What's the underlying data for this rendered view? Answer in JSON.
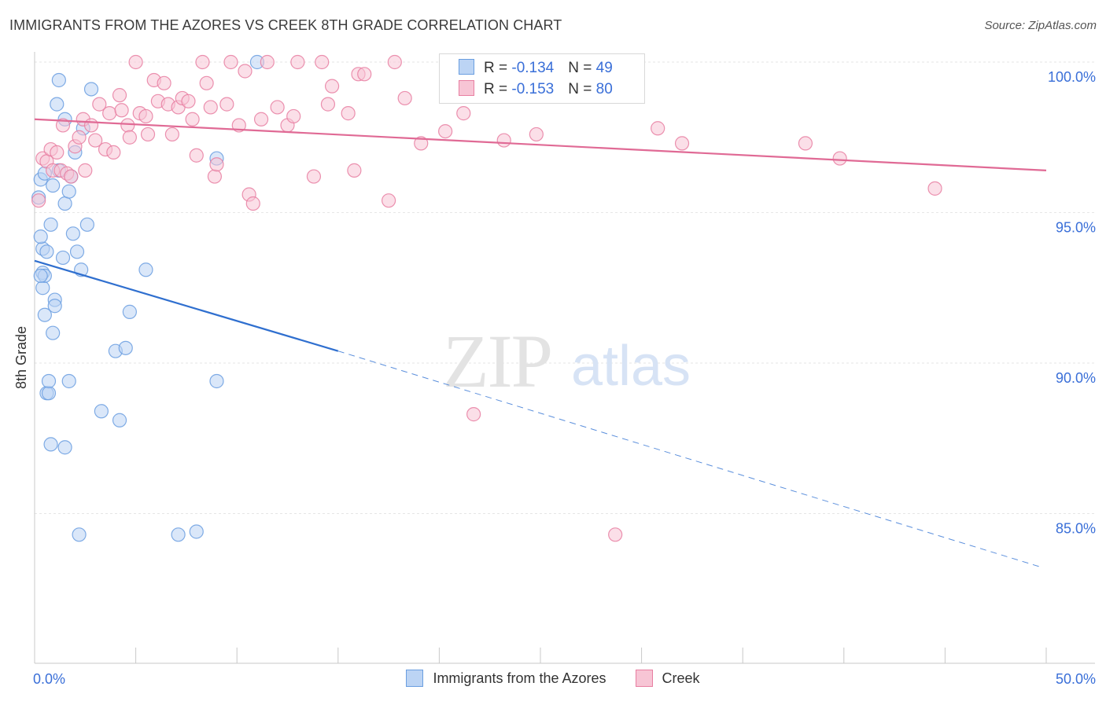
{
  "header": {
    "title": "IMMIGRANTS FROM THE AZORES VS CREEK 8TH GRADE CORRELATION CHART",
    "source": "Source: ZipAtlas.com"
  },
  "watermark": {
    "zip": "ZIP",
    "atlas": "atlas"
  },
  "legend_top": {
    "rows": [
      {
        "r_label": "R = ",
        "r_value": "-0.134",
        "n_label": "N = ",
        "n_value": "49"
      },
      {
        "r_label": "R = ",
        "r_value": "-0.153",
        "n_label": "N = ",
        "n_value": "80"
      }
    ]
  },
  "chart_data": {
    "type": "scatter",
    "title": "IMMIGRANTS FROM THE AZORES VS CREEK 8TH GRADE CORRELATION CHART",
    "xlabel": "",
    "ylabel": "8th Grade",
    "xlim": [
      0,
      50
    ],
    "ylim": [
      80.5,
      101.2
    ],
    "x_tick_labels": [
      {
        "value": 0,
        "label": "0.0%"
      },
      {
        "value": 50,
        "label": "50.0%"
      }
    ],
    "x_minor_ticks": [
      5,
      10,
      15,
      20,
      25,
      30,
      35,
      40,
      45
    ],
    "y_ticks": [
      {
        "value": 85,
        "label": "85.0%"
      },
      {
        "value": 90,
        "label": "90.0%"
      },
      {
        "value": 95,
        "label": "95.0%"
      },
      {
        "value": 100,
        "label": "100.0%"
      }
    ],
    "grid": true,
    "legend_position": "bottom",
    "series": [
      {
        "name": "Immigrants from the Azores",
        "color": "#6a9ee0",
        "fill": "#bcd4f4",
        "R": -0.134,
        "N": 49,
        "trend": {
          "x0": 0,
          "y0": 93.4,
          "x1": 15,
          "y1": 90.4,
          "dash_to_x": 50,
          "dash_to_y": 83.2
        },
        "points": [
          [
            0.2,
            95.5
          ],
          [
            0.3,
            96.1
          ],
          [
            0.5,
            96.3
          ],
          [
            0.4,
            93.8
          ],
          [
            0.3,
            94.2
          ],
          [
            0.4,
            93.0
          ],
          [
            0.4,
            92.5
          ],
          [
            0.5,
            92.9
          ],
          [
            0.5,
            91.6
          ],
          [
            0.6,
            93.7
          ],
          [
            0.6,
            89.0
          ],
          [
            0.7,
            89.0
          ],
          [
            0.7,
            89.4
          ],
          [
            0.8,
            94.6
          ],
          [
            0.8,
            87.3
          ],
          [
            0.9,
            91.0
          ],
          [
            0.9,
            95.9
          ],
          [
            1.0,
            92.1
          ],
          [
            1.0,
            91.9
          ],
          [
            1.1,
            98.6
          ],
          [
            1.2,
            99.4
          ],
          [
            1.2,
            96.4
          ],
          [
            1.4,
            93.5
          ],
          [
            1.5,
            87.2
          ],
          [
            1.5,
            95.3
          ],
          [
            1.5,
            98.1
          ],
          [
            1.7,
            95.7
          ],
          [
            1.7,
            89.4
          ],
          [
            1.8,
            96.2
          ],
          [
            1.9,
            94.3
          ],
          [
            2.0,
            97.0
          ],
          [
            2.1,
            93.7
          ],
          [
            2.2,
            84.3
          ],
          [
            2.3,
            93.1
          ],
          [
            2.4,
            97.8
          ],
          [
            2.6,
            94.6
          ],
          [
            2.8,
            99.1
          ],
          [
            3.3,
            88.4
          ],
          [
            4.0,
            90.4
          ],
          [
            4.2,
            88.1
          ],
          [
            4.5,
            90.5
          ],
          [
            4.7,
            91.7
          ],
          [
            5.5,
            93.1
          ],
          [
            7.1,
            84.3
          ],
          [
            8.0,
            84.4
          ],
          [
            9.0,
            89.4
          ],
          [
            9.0,
            96.8
          ],
          [
            11.0,
            100.0
          ],
          [
            0.3,
            92.9
          ]
        ]
      },
      {
        "name": "Creek",
        "color": "#e87ea1",
        "fill": "#f7c5d5",
        "R": -0.153,
        "N": 80,
        "trend": {
          "x0": 0,
          "y0": 98.1,
          "x1": 50,
          "y1": 96.4
        },
        "points": [
          [
            0.2,
            95.4
          ],
          [
            0.4,
            96.8
          ],
          [
            0.6,
            96.7
          ],
          [
            0.8,
            97.1
          ],
          [
            0.9,
            96.4
          ],
          [
            1.1,
            97.0
          ],
          [
            1.3,
            96.4
          ],
          [
            1.4,
            97.9
          ],
          [
            1.6,
            96.3
          ],
          [
            1.8,
            96.2
          ],
          [
            2.0,
            97.2
          ],
          [
            2.2,
            97.5
          ],
          [
            2.4,
            98.1
          ],
          [
            2.5,
            96.4
          ],
          [
            2.8,
            97.9
          ],
          [
            3.0,
            97.4
          ],
          [
            3.2,
            98.6
          ],
          [
            3.5,
            97.1
          ],
          [
            3.7,
            98.3
          ],
          [
            3.9,
            97.0
          ],
          [
            4.2,
            98.9
          ],
          [
            4.3,
            98.4
          ],
          [
            4.6,
            97.9
          ],
          [
            4.7,
            97.5
          ],
          [
            5.0,
            100.0
          ],
          [
            5.2,
            98.3
          ],
          [
            5.5,
            98.2
          ],
          [
            5.6,
            97.6
          ],
          [
            5.9,
            99.4
          ],
          [
            6.1,
            98.7
          ],
          [
            6.4,
            99.3
          ],
          [
            6.6,
            98.6
          ],
          [
            6.8,
            97.6
          ],
          [
            7.1,
            98.5
          ],
          [
            7.3,
            98.8
          ],
          [
            7.6,
            98.7
          ],
          [
            7.8,
            98.1
          ],
          [
            8.0,
            96.9
          ],
          [
            8.3,
            100.0
          ],
          [
            8.5,
            99.3
          ],
          [
            8.7,
            98.5
          ],
          [
            8.9,
            96.2
          ],
          [
            9.0,
            96.6
          ],
          [
            9.5,
            98.6
          ],
          [
            9.7,
            100.0
          ],
          [
            10.1,
            97.9
          ],
          [
            10.4,
            99.7
          ],
          [
            10.6,
            95.6
          ],
          [
            10.8,
            95.3
          ],
          [
            11.2,
            98.1
          ],
          [
            11.5,
            100.0
          ],
          [
            12.0,
            98.5
          ],
          [
            12.5,
            97.9
          ],
          [
            12.8,
            98.2
          ],
          [
            13.8,
            96.2
          ],
          [
            14.2,
            100.0
          ],
          [
            14.5,
            98.6
          ],
          [
            14.7,
            99.2
          ],
          [
            15.5,
            98.3
          ],
          [
            15.8,
            96.4
          ],
          [
            16.0,
            99.6
          ],
          [
            16.3,
            99.6
          ],
          [
            17.5,
            95.4
          ],
          [
            17.8,
            100.0
          ],
          [
            18.3,
            98.8
          ],
          [
            19.1,
            97.3
          ],
          [
            20.3,
            97.7
          ],
          [
            21.2,
            98.3
          ],
          [
            21.7,
            88.3
          ],
          [
            22.5,
            99.9
          ],
          [
            23.2,
            97.4
          ],
          [
            24.3,
            99.1
          ],
          [
            24.8,
            97.6
          ],
          [
            28.7,
            84.3
          ],
          [
            30.8,
            97.8
          ],
          [
            32.0,
            97.3
          ],
          [
            38.1,
            97.3
          ],
          [
            39.8,
            96.8
          ],
          [
            44.5,
            95.8
          ],
          [
            13.0,
            100.0
          ]
        ]
      }
    ]
  }
}
